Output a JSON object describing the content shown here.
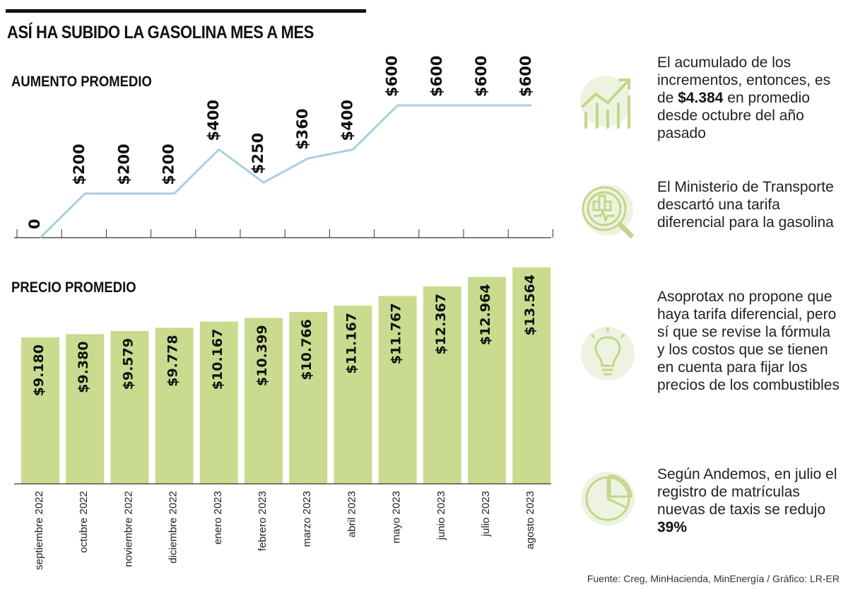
{
  "title": "ASÍ HA SUBIDO LA GASOLINA MES A MES",
  "source": "Fuente: Creg, MinHacienda, MinEnergía / Gráfico: LR-ER",
  "colors": {
    "line": "#a9cfe2",
    "bar": "#cadb8f",
    "icon": "#c3d68a",
    "icon_bg": "#eef3e1"
  },
  "notes": [
    {
      "icon": "trend-up-chart-icon",
      "before": "El acumulado de los incrementos, entonces, es de ",
      "bold": "$4.384",
      "after": " en promedio desde octubre del año pasado"
    },
    {
      "icon": "magnifier-analysis-icon",
      "before": "El Ministerio de Transporte descartó una tarifa diferencial para la gasolina",
      "bold": "",
      "after": ""
    },
    {
      "icon": "lightbulb-icon",
      "before": "Asoprotax no propone que haya tarifa diferencial, pero sí que se revise la fórmula y los costos que se tienen en cuenta para fijar los precios de los combustibles",
      "bold": "",
      "after": ""
    },
    {
      "icon": "pie-chart-icon",
      "before": "Según Andemos, en julio el registro de matrículas nuevas de taxis se redujo ",
      "bold": "39%",
      "after": ""
    }
  ],
  "chart_data": [
    {
      "type": "line",
      "title": "AUMENTO PROMEDIO",
      "categories": [
        "septiembre 2022",
        "octubre 2022",
        "noviembre 2022",
        "diciembre 2022",
        "enero 2023",
        "febrero 2023",
        "marzo 2023",
        "abril 2023",
        "mayo 2023",
        "junio 2023",
        "julio 2023",
        "agosto 2023"
      ],
      "values": [
        0,
        200,
        200,
        200,
        400,
        250,
        360,
        400,
        600,
        600,
        600,
        600
      ],
      "labels": [
        "0",
        "$200",
        "$200",
        "$200",
        "$400",
        "$250",
        "$360",
        "$400",
        "$600",
        "$600",
        "$600",
        "$600"
      ],
      "ylim": [
        0,
        600
      ]
    },
    {
      "type": "bar",
      "title": "PRECIO PROMEDIO",
      "categories": [
        "septiembre 2022",
        "octubre 2022",
        "noviembre 2022",
        "diciembre 2022",
        "enero 2023",
        "febrero 2023",
        "marzo 2023",
        "abril 2023",
        "mayo 2023",
        "junio 2023",
        "julio 2023",
        "agosto 2023"
      ],
      "values": [
        9180,
        9380,
        9579,
        9778,
        10167,
        10399,
        10766,
        11167,
        11767,
        12367,
        12964,
        13564
      ],
      "labels": [
        "$9.180",
        "$9.380",
        "$9.579",
        "$9.778",
        "$10.167",
        "$10.399",
        "$10.766",
        "$11.167",
        "$11.767",
        "$12.367",
        "$12.964",
        "$13.564"
      ],
      "ylim": [
        0,
        13564
      ]
    }
  ]
}
